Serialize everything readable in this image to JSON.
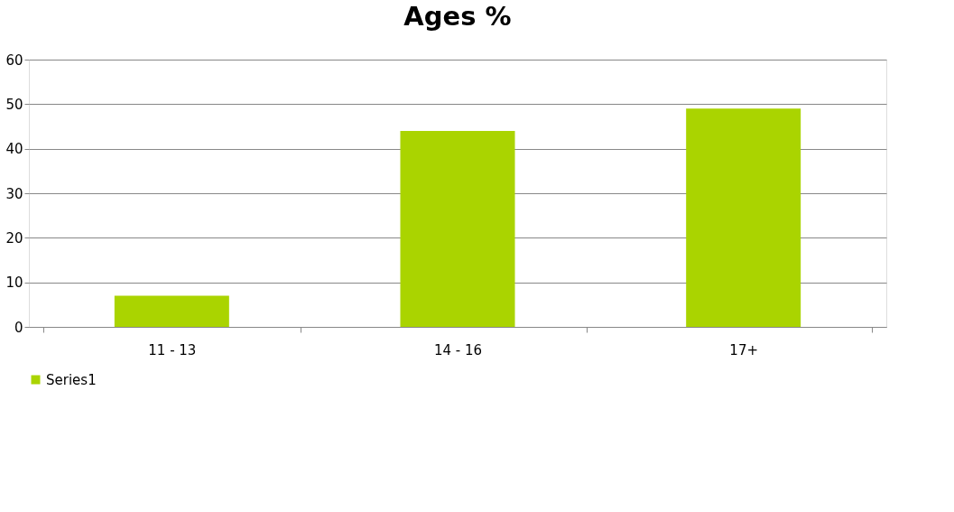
{
  "chart_data": {
    "type": "bar",
    "title": "Ages %",
    "categories": [
      "11 - 13",
      "14 - 16",
      "17+"
    ],
    "series": [
      {
        "name": "Series1",
        "color": "#aad400",
        "values": [
          7,
          44,
          49
        ]
      }
    ],
    "ylim": [
      0,
      60
    ],
    "yticks": [
      0,
      10,
      20,
      30,
      40,
      50,
      60
    ],
    "grid": "y",
    "legend": "bottom"
  }
}
